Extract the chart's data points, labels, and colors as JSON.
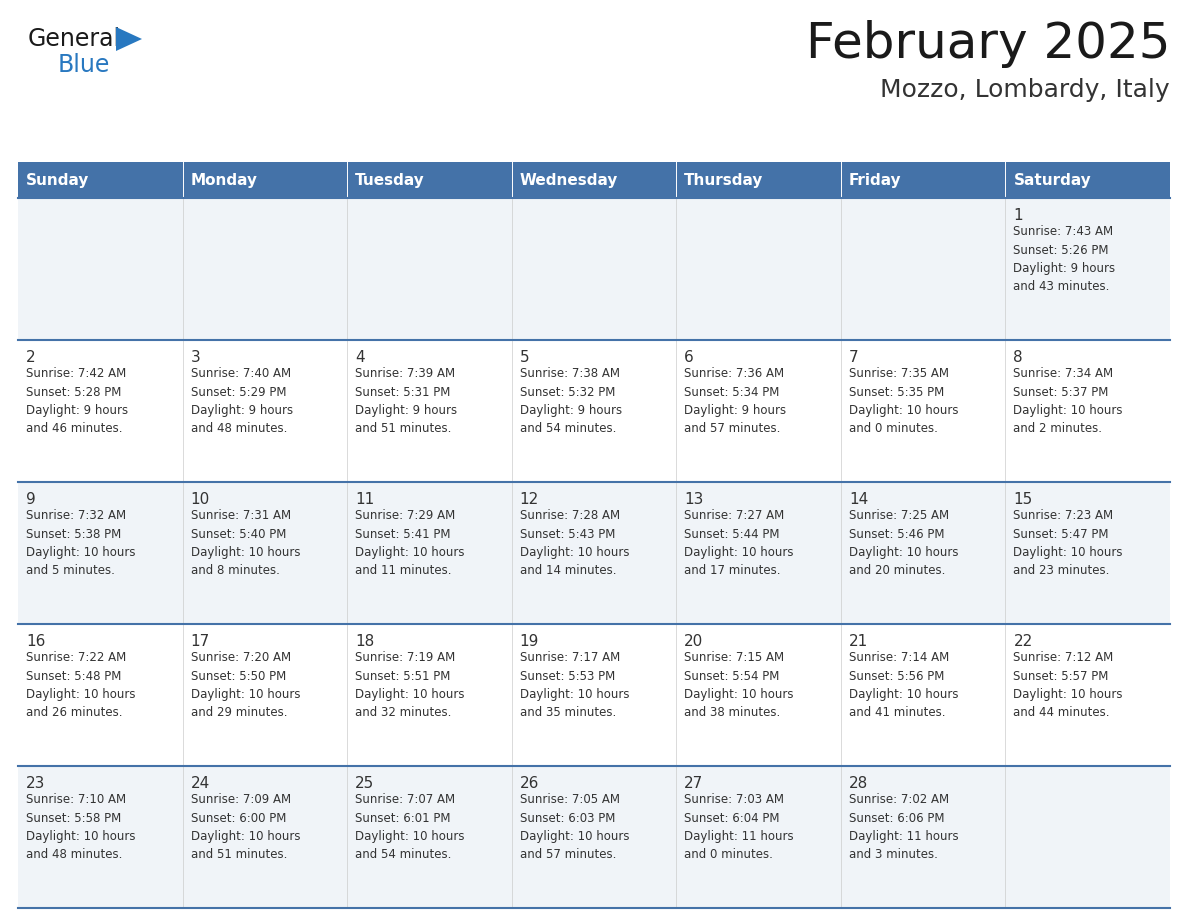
{
  "title": "February 2025",
  "subtitle": "Mozzo, Lombardy, Italy",
  "header_bg_color": "#4472a8",
  "header_text_color": "#ffffff",
  "day_names": [
    "Sunday",
    "Monday",
    "Tuesday",
    "Wednesday",
    "Thursday",
    "Friday",
    "Saturday"
  ],
  "cell_bg_even": "#f0f4f8",
  "cell_bg_odd": "#ffffff",
  "cell_border_color": "#4472a8",
  "date_text_color": "#333333",
  "info_text_color": "#333333",
  "title_color": "#1a1a1a",
  "subtitle_color": "#333333",
  "logo_general_color": "#1a1a1a",
  "logo_blue_color": "#2878c0",
  "weeks": [
    [
      {
        "day": null,
        "info": ""
      },
      {
        "day": null,
        "info": ""
      },
      {
        "day": null,
        "info": ""
      },
      {
        "day": null,
        "info": ""
      },
      {
        "day": null,
        "info": ""
      },
      {
        "day": null,
        "info": ""
      },
      {
        "day": 1,
        "info": "Sunrise: 7:43 AM\nSunset: 5:26 PM\nDaylight: 9 hours\nand 43 minutes."
      }
    ],
    [
      {
        "day": 2,
        "info": "Sunrise: 7:42 AM\nSunset: 5:28 PM\nDaylight: 9 hours\nand 46 minutes."
      },
      {
        "day": 3,
        "info": "Sunrise: 7:40 AM\nSunset: 5:29 PM\nDaylight: 9 hours\nand 48 minutes."
      },
      {
        "day": 4,
        "info": "Sunrise: 7:39 AM\nSunset: 5:31 PM\nDaylight: 9 hours\nand 51 minutes."
      },
      {
        "day": 5,
        "info": "Sunrise: 7:38 AM\nSunset: 5:32 PM\nDaylight: 9 hours\nand 54 minutes."
      },
      {
        "day": 6,
        "info": "Sunrise: 7:36 AM\nSunset: 5:34 PM\nDaylight: 9 hours\nand 57 minutes."
      },
      {
        "day": 7,
        "info": "Sunrise: 7:35 AM\nSunset: 5:35 PM\nDaylight: 10 hours\nand 0 minutes."
      },
      {
        "day": 8,
        "info": "Sunrise: 7:34 AM\nSunset: 5:37 PM\nDaylight: 10 hours\nand 2 minutes."
      }
    ],
    [
      {
        "day": 9,
        "info": "Sunrise: 7:32 AM\nSunset: 5:38 PM\nDaylight: 10 hours\nand 5 minutes."
      },
      {
        "day": 10,
        "info": "Sunrise: 7:31 AM\nSunset: 5:40 PM\nDaylight: 10 hours\nand 8 minutes."
      },
      {
        "day": 11,
        "info": "Sunrise: 7:29 AM\nSunset: 5:41 PM\nDaylight: 10 hours\nand 11 minutes."
      },
      {
        "day": 12,
        "info": "Sunrise: 7:28 AM\nSunset: 5:43 PM\nDaylight: 10 hours\nand 14 minutes."
      },
      {
        "day": 13,
        "info": "Sunrise: 7:27 AM\nSunset: 5:44 PM\nDaylight: 10 hours\nand 17 minutes."
      },
      {
        "day": 14,
        "info": "Sunrise: 7:25 AM\nSunset: 5:46 PM\nDaylight: 10 hours\nand 20 minutes."
      },
      {
        "day": 15,
        "info": "Sunrise: 7:23 AM\nSunset: 5:47 PM\nDaylight: 10 hours\nand 23 minutes."
      }
    ],
    [
      {
        "day": 16,
        "info": "Sunrise: 7:22 AM\nSunset: 5:48 PM\nDaylight: 10 hours\nand 26 minutes."
      },
      {
        "day": 17,
        "info": "Sunrise: 7:20 AM\nSunset: 5:50 PM\nDaylight: 10 hours\nand 29 minutes."
      },
      {
        "day": 18,
        "info": "Sunrise: 7:19 AM\nSunset: 5:51 PM\nDaylight: 10 hours\nand 32 minutes."
      },
      {
        "day": 19,
        "info": "Sunrise: 7:17 AM\nSunset: 5:53 PM\nDaylight: 10 hours\nand 35 minutes."
      },
      {
        "day": 20,
        "info": "Sunrise: 7:15 AM\nSunset: 5:54 PM\nDaylight: 10 hours\nand 38 minutes."
      },
      {
        "day": 21,
        "info": "Sunrise: 7:14 AM\nSunset: 5:56 PM\nDaylight: 10 hours\nand 41 minutes."
      },
      {
        "day": 22,
        "info": "Sunrise: 7:12 AM\nSunset: 5:57 PM\nDaylight: 10 hours\nand 44 minutes."
      }
    ],
    [
      {
        "day": 23,
        "info": "Sunrise: 7:10 AM\nSunset: 5:58 PM\nDaylight: 10 hours\nand 48 minutes."
      },
      {
        "day": 24,
        "info": "Sunrise: 7:09 AM\nSunset: 6:00 PM\nDaylight: 10 hours\nand 51 minutes."
      },
      {
        "day": 25,
        "info": "Sunrise: 7:07 AM\nSunset: 6:01 PM\nDaylight: 10 hours\nand 54 minutes."
      },
      {
        "day": 26,
        "info": "Sunrise: 7:05 AM\nSunset: 6:03 PM\nDaylight: 10 hours\nand 57 minutes."
      },
      {
        "day": 27,
        "info": "Sunrise: 7:03 AM\nSunset: 6:04 PM\nDaylight: 11 hours\nand 0 minutes."
      },
      {
        "day": 28,
        "info": "Sunrise: 7:02 AM\nSunset: 6:06 PM\nDaylight: 11 hours\nand 3 minutes."
      },
      {
        "day": null,
        "info": ""
      }
    ]
  ]
}
